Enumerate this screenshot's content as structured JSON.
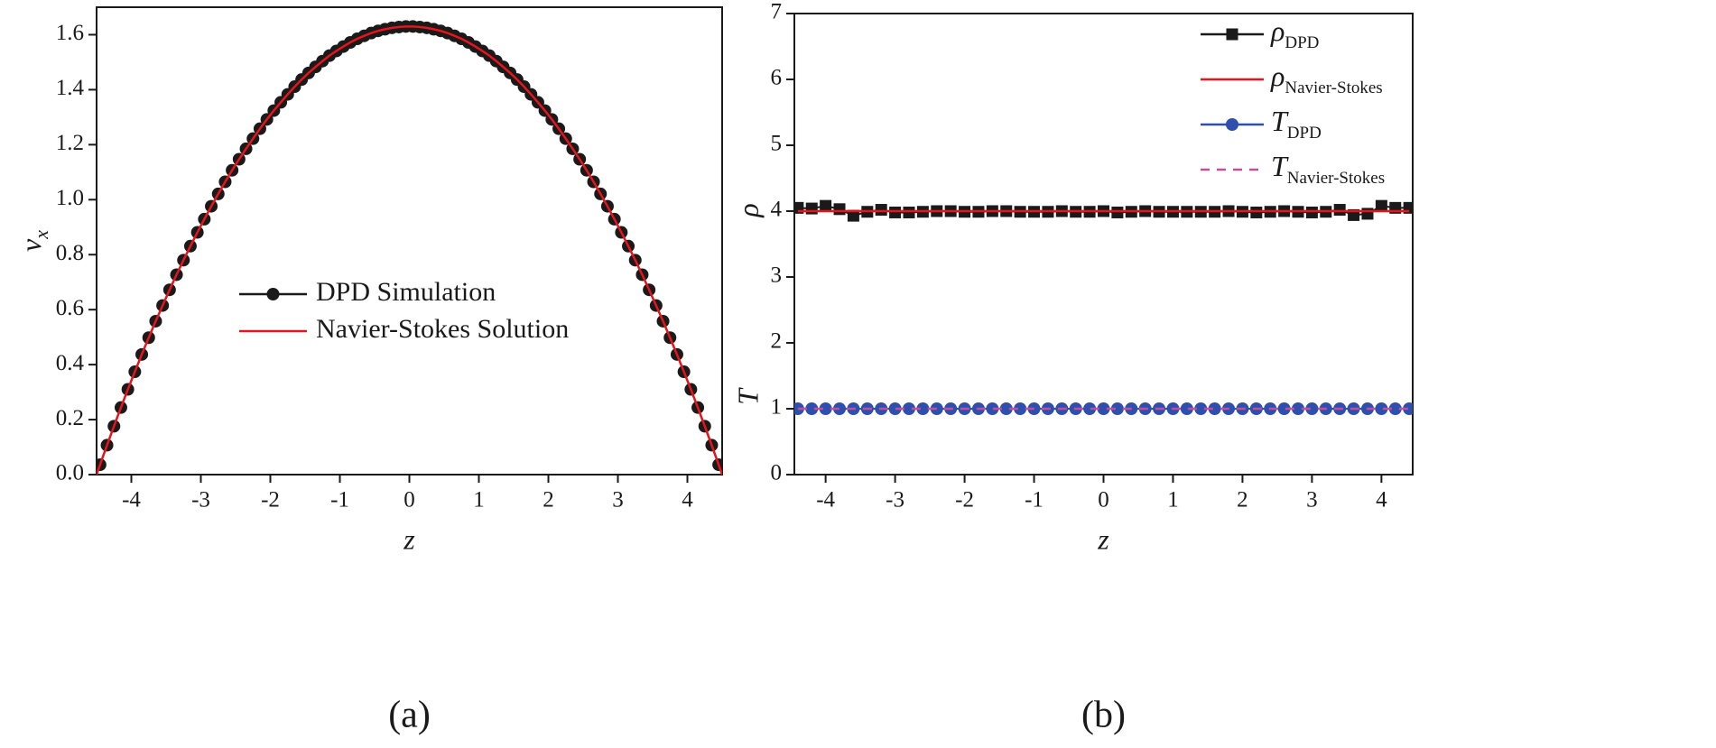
{
  "chart_data": [
    {
      "type": "line",
      "caption": "(a)",
      "xlabel": "z",
      "ylabel": "v",
      "ylabel_sub": "x",
      "legend": "center",
      "x": [
        -4.5,
        -4.45,
        -4.35,
        -4.25,
        -4.15,
        -4.05,
        -3.95,
        -3.85,
        -3.75,
        -3.65,
        -3.55,
        -3.45,
        -3.35,
        -3.25,
        -3.15,
        -3.05,
        -2.95,
        -2.85,
        -2.75,
        -2.65,
        -2.55,
        -2.45,
        -2.35,
        -2.25,
        -2.15,
        -2.05,
        -1.95,
        -1.85,
        -1.75,
        -1.65,
        -1.55,
        -1.45,
        -1.35,
        -1.25,
        -1.15,
        -1.05,
        -0.95,
        -0.85,
        -0.75,
        -0.65,
        -0.55,
        -0.45,
        -0.35,
        -0.25,
        -0.15,
        -0.05,
        0.05,
        0.15,
        0.25,
        0.35,
        0.45,
        0.55,
        0.65,
        0.75,
        0.85,
        0.95,
        1.05,
        1.15,
        1.25,
        1.35,
        1.45,
        1.55,
        1.65,
        1.75,
        1.85,
        1.95,
        2.05,
        2.15,
        2.25,
        2.35,
        2.45,
        2.55,
        2.65,
        2.75,
        2.85,
        2.95,
        3.05,
        3.15,
        3.25,
        3.35,
        3.45,
        3.55,
        3.65,
        3.75,
        3.85,
        3.95,
        4.05,
        4.15,
        4.25,
        4.35,
        4.45,
        4.5
      ],
      "series": [
        {
          "name": "DPD Simulation",
          "color": "#1a1a1a",
          "marker": "circle",
          "values": [
            null,
            0.036,
            0.107,
            0.176,
            0.244,
            0.31,
            0.374,
            0.437,
            0.498,
            0.558,
            0.615,
            0.672,
            0.727,
            0.78,
            0.831,
            0.881,
            0.929,
            0.976,
            1.021,
            1.065,
            1.107,
            1.147,
            1.185,
            1.222,
            1.258,
            1.292,
            1.324,
            1.354,
            1.383,
            1.411,
            1.437,
            1.461,
            1.483,
            1.504,
            1.524,
            1.541,
            1.557,
            1.572,
            1.585,
            1.596,
            1.606,
            1.614,
            1.62,
            1.625,
            1.628,
            1.63,
            1.63,
            1.628,
            1.625,
            1.62,
            1.614,
            1.606,
            1.596,
            1.585,
            1.572,
            1.557,
            1.541,
            1.524,
            1.504,
            1.483,
            1.461,
            1.437,
            1.411,
            1.383,
            1.354,
            1.324,
            1.292,
            1.258,
            1.222,
            1.185,
            1.147,
            1.107,
            1.065,
            1.021,
            0.976,
            0.929,
            0.881,
            0.831,
            0.78,
            0.727,
            0.672,
            0.615,
            0.558,
            0.498,
            0.437,
            0.374,
            0.31,
            0.244,
            0.176,
            0.107,
            0.036,
            null
          ]
        },
        {
          "name": "Navier-Stokes Solution",
          "color": "#e8141b",
          "values": [
            0,
            0.036,
            0.107,
            0.176,
            0.244,
            0.31,
            0.374,
            0.437,
            0.498,
            0.558,
            0.615,
            0.672,
            0.727,
            0.78,
            0.831,
            0.881,
            0.929,
            0.976,
            1.021,
            1.065,
            1.107,
            1.147,
            1.185,
            1.222,
            1.258,
            1.292,
            1.324,
            1.354,
            1.383,
            1.411,
            1.437,
            1.461,
            1.483,
            1.504,
            1.524,
            1.541,
            1.557,
            1.572,
            1.585,
            1.596,
            1.606,
            1.614,
            1.62,
            1.625,
            1.628,
            1.63,
            1.63,
            1.628,
            1.625,
            1.62,
            1.614,
            1.606,
            1.596,
            1.585,
            1.572,
            1.557,
            1.541,
            1.524,
            1.504,
            1.483,
            1.461,
            1.437,
            1.411,
            1.383,
            1.354,
            1.324,
            1.292,
            1.258,
            1.222,
            1.185,
            1.147,
            1.107,
            1.065,
            1.021,
            0.976,
            0.929,
            0.881,
            0.831,
            0.78,
            0.727,
            0.672,
            0.615,
            0.558,
            0.498,
            0.437,
            0.374,
            0.31,
            0.244,
            0.176,
            0.107,
            0.036,
            0
          ]
        }
      ],
      "xlim": [
        -4.5,
        4.5
      ],
      "xticks": [
        -4,
        -3,
        -2,
        -1,
        0,
        1,
        2,
        3,
        4
      ],
      "ylim": [
        0,
        1.7
      ],
      "yticks": [
        {
          "value": 0,
          "label": "0.0"
        },
        0.2,
        0.4,
        0.6,
        0.8,
        {
          "value": 1,
          "label": "1.0"
        },
        1.2,
        1.4,
        1.6
      ]
    },
    {
      "type": "line",
      "caption": "(b)",
      "xlabel": "z",
      "ylabel": "ρ",
      "ylabel2": "T",
      "legend": "upper right",
      "x": [
        -4.4,
        -4.2,
        -4.0,
        -3.8,
        -3.6,
        -3.4,
        -3.2,
        -3.0,
        -2.8,
        -2.6,
        -2.4,
        -2.2,
        -2.0,
        -1.8,
        -1.6,
        -1.4,
        -1.2,
        -1.0,
        -0.8,
        -0.6,
        -0.4,
        -0.2,
        0,
        0.2,
        0.4,
        0.6,
        0.8,
        1.0,
        1.2,
        1.4,
        1.6,
        1.8,
        2.0,
        2.2,
        2.4,
        2.6,
        2.8,
        3.0,
        3.2,
        3.4,
        3.6,
        3.8,
        4.0,
        4.2,
        4.4
      ],
      "series": [
        {
          "name": "ρ",
          "subscript": "DPD",
          "color": "#1a1a1a",
          "marker": "square",
          "values": [
            4.05,
            4.04,
            4.08,
            4.03,
            3.93,
            3.99,
            4.02,
            3.98,
            3.98,
            3.99,
            4.0,
            4.0,
            3.99,
            3.99,
            4.0,
            4.0,
            3.99,
            3.99,
            3.99,
            4.0,
            3.99,
            3.99,
            4.0,
            3.98,
            3.99,
            4.0,
            3.99,
            3.99,
            3.99,
            3.99,
            3.99,
            4.0,
            3.99,
            3.98,
            3.99,
            4.0,
            3.99,
            3.98,
            3.99,
            4.02,
            3.94,
            3.96,
            4.08,
            4.05,
            4.05
          ]
        },
        {
          "name": "ρ",
          "subscript": "Navier-Stokes",
          "color": "#e8141b",
          "values": [
            4,
            4,
            4,
            4,
            4,
            4,
            4,
            4,
            4,
            4,
            4,
            4,
            4,
            4,
            4,
            4,
            4,
            4,
            4,
            4,
            4,
            4,
            4,
            4,
            4,
            4,
            4,
            4,
            4,
            4,
            4,
            4,
            4,
            4,
            4,
            4,
            4,
            4,
            4,
            4,
            4,
            4,
            4,
            4,
            4
          ]
        },
        {
          "name": "T",
          "subscript": "DPD",
          "color": "#2f4fae",
          "marker": "circle",
          "values": [
            1,
            1,
            1,
            1,
            1,
            1,
            1,
            1,
            1,
            1,
            1,
            1,
            1,
            1,
            1,
            1,
            1,
            1,
            1,
            1,
            1,
            1,
            1,
            1,
            1,
            1,
            1,
            1,
            1,
            1,
            1,
            1,
            1,
            1,
            1,
            1,
            1,
            1,
            1,
            1,
            1,
            1,
            1,
            1,
            1
          ]
        },
        {
          "name": "T",
          "subscript": "Navier-Stokes",
          "color": "#c04fa0",
          "dash": true,
          "values": [
            1,
            1,
            1,
            1,
            1,
            1,
            1,
            1,
            1,
            1,
            1,
            1,
            1,
            1,
            1,
            1,
            1,
            1,
            1,
            1,
            1,
            1,
            1,
            1,
            1,
            1,
            1,
            1,
            1,
            1,
            1,
            1,
            1,
            1,
            1,
            1,
            1,
            1,
            1,
            1,
            1,
            1,
            1,
            1,
            1
          ]
        }
      ],
      "xlim": [
        -4.45,
        4.45
      ],
      "xticks": [
        -4,
        -3,
        -2,
        -1,
        0,
        1,
        2,
        3,
        4
      ],
      "ylim": [
        0,
        7
      ],
      "yticks": [
        0,
        1,
        2,
        3,
        4,
        5,
        6,
        7
      ]
    }
  ]
}
